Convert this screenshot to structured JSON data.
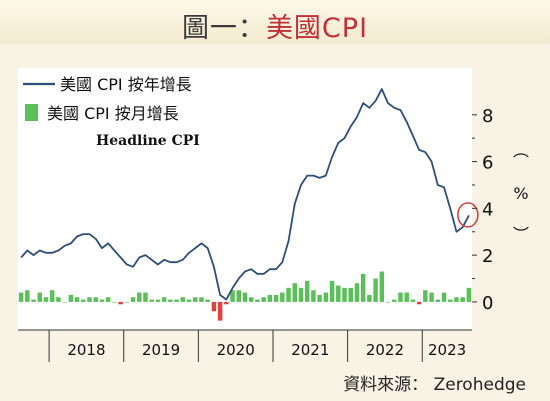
{
  "title": {
    "prefix": "圖一：",
    "main": "美國CPI"
  },
  "source": "資料來源： Zerohedge",
  "colors": {
    "yoy_line": "#2c4f7c",
    "mom_positive": "#5cc05a",
    "mom_negative": "#e04040",
    "highlight_circle": "#d04848",
    "plot_bg": "#ffffff"
  },
  "chart_data": {
    "type": "line+bar",
    "annotation": "Headline CPI",
    "unit_label": {
      "open": "︵",
      "symbol": "%",
      "close": "︶"
    },
    "y_axis": {
      "range": [
        -1.2,
        10
      ],
      "ticks": [
        "0",
        "2",
        "4",
        "6",
        "8"
      ],
      "position": "right"
    },
    "x_axis": {
      "years": [
        "2018",
        "2019",
        "2020",
        "2021",
        "2022",
        "2023"
      ],
      "start": "2017-08",
      "end": "2023-09"
    },
    "legend": [
      {
        "name": "美國 CPI 按年增長",
        "kind": "line"
      },
      {
        "name": "美國 CPI 按月增長",
        "kind": "bar"
      }
    ],
    "months": [
      "2017-08",
      "2017-09",
      "2017-10",
      "2017-11",
      "2017-12",
      "2018-01",
      "2018-02",
      "2018-03",
      "2018-04",
      "2018-05",
      "2018-06",
      "2018-07",
      "2018-08",
      "2018-09",
      "2018-10",
      "2018-11",
      "2018-12",
      "2019-01",
      "2019-02",
      "2019-03",
      "2019-04",
      "2019-05",
      "2019-06",
      "2019-07",
      "2019-08",
      "2019-09",
      "2019-10",
      "2019-11",
      "2019-12",
      "2020-01",
      "2020-02",
      "2020-03",
      "2020-04",
      "2020-05",
      "2020-06",
      "2020-07",
      "2020-08",
      "2020-09",
      "2020-10",
      "2020-11",
      "2020-12",
      "2021-01",
      "2021-02",
      "2021-03",
      "2021-04",
      "2021-05",
      "2021-06",
      "2021-07",
      "2021-08",
      "2021-09",
      "2021-10",
      "2021-11",
      "2021-12",
      "2022-01",
      "2022-02",
      "2022-03",
      "2022-04",
      "2022-05",
      "2022-06",
      "2022-07",
      "2022-08",
      "2022-09",
      "2022-10",
      "2022-11",
      "2022-12",
      "2023-01",
      "2023-02",
      "2023-03",
      "2023-04",
      "2023-05",
      "2023-06",
      "2023-07",
      "2023-08"
    ],
    "series": [
      {
        "name": "美國 CPI 按年增長",
        "values": [
          1.9,
          2.2,
          2.0,
          2.2,
          2.1,
          2.1,
          2.2,
          2.4,
          2.5,
          2.8,
          2.9,
          2.9,
          2.7,
          2.3,
          2.5,
          2.2,
          1.9,
          1.6,
          1.5,
          1.9,
          2.0,
          1.8,
          1.6,
          1.8,
          1.7,
          1.7,
          1.8,
          2.1,
          2.3,
          2.5,
          2.3,
          1.5,
          0.3,
          0.1,
          0.6,
          1.0,
          1.3,
          1.4,
          1.2,
          1.2,
          1.4,
          1.4,
          1.7,
          2.6,
          4.2,
          5.0,
          5.4,
          5.4,
          5.3,
          5.4,
          6.2,
          6.8,
          7.0,
          7.5,
          7.9,
          8.5,
          8.3,
          8.6,
          9.1,
          8.5,
          8.3,
          8.2,
          7.7,
          7.1,
          6.5,
          6.4,
          6.0,
          5.0,
          4.9,
          4.0,
          3.0,
          3.2,
          3.7
        ]
      },
      {
        "name": "美國 CPI 按月增長",
        "values": [
          0.4,
          0.5,
          0.1,
          0.4,
          0.2,
          0.5,
          0.2,
          0.0,
          0.3,
          0.2,
          0.1,
          0.2,
          0.2,
          0.1,
          0.2,
          0.0,
          -0.1,
          0.0,
          0.2,
          0.4,
          0.4,
          0.1,
          0.1,
          0.2,
          0.1,
          0.1,
          0.2,
          0.1,
          0.2,
          0.2,
          0.1,
          -0.4,
          -0.8,
          -0.1,
          0.5,
          0.5,
          0.4,
          0.2,
          0.1,
          0.2,
          0.3,
          0.3,
          0.4,
          0.6,
          0.8,
          0.6,
          0.9,
          0.5,
          0.3,
          0.4,
          0.9,
          0.7,
          0.6,
          0.6,
          0.8,
          1.2,
          0.3,
          1.0,
          1.3,
          0.0,
          0.1,
          0.4,
          0.4,
          0.1,
          -0.1,
          0.5,
          0.4,
          0.1,
          0.4,
          0.1,
          0.2,
          0.2,
          0.6
        ]
      }
    ],
    "highlight": {
      "month": "2023-08"
    }
  }
}
